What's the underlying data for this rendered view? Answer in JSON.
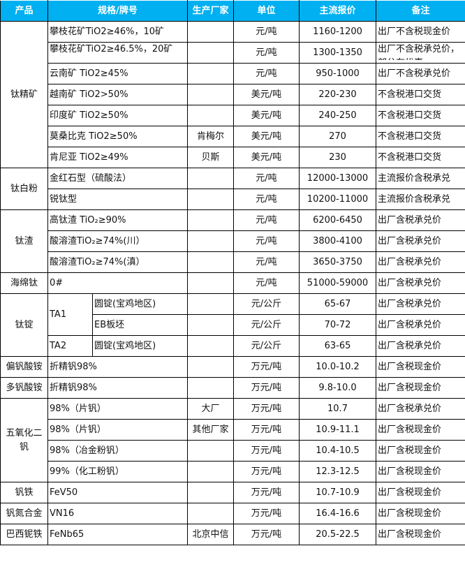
{
  "header": {
    "product": "产品",
    "spec": "规格/牌号",
    "maker": "生产厂家",
    "unit": "单位",
    "price": "主流报价",
    "note": "备注"
  },
  "groups": {
    "g1": "钛精矿",
    "g2": "钛白粉",
    "g3": "钛渣",
    "g4": "海绵钛",
    "g5": "钛锭",
    "g6": "偏钒酸铵",
    "g7": "多钒酸铵",
    "g8": "五氧化二钒",
    "g9": "钒铁",
    "g10": "钒氮合金",
    "g11": "巴西铌铁"
  },
  "rows": [
    {
      "spec": "攀枝花矿TiO2≥46%，10矿",
      "maker": "",
      "unit": "元/吨",
      "price": "1160-1200",
      "note": "出厂不含税现金价"
    },
    {
      "spec": "攀枝花矿TiO2≥46.5%，20矿",
      "maker": "",
      "unit": "元/吨",
      "price": "1300-1350",
      "note": "出厂不含税承兑价，部分有优惠"
    },
    {
      "spec": "云南矿 TiO2≥45%",
      "maker": "",
      "unit": "元/吨",
      "price": "950-1000",
      "note": "出厂不含税承兑价"
    },
    {
      "spec": "越南矿 TiO2>50%",
      "maker": "",
      "unit": "美元/吨",
      "price": "220-230",
      "note": "不含税港口交货"
    },
    {
      "spec": "印度矿 TiO2≥50%",
      "maker": "",
      "unit": "美元/吨",
      "price": "240-250",
      "note": "不含税港口交货"
    },
    {
      "spec": "莫桑比克 TiO2≥50%",
      "maker": "肯梅尔",
      "unit": "美元/吨",
      "price": "270",
      "note": "不含税港口交货"
    },
    {
      "spec": "肯尼亚 TiO2≥49%",
      "maker": "贝斯",
      "unit": "美元/吨",
      "price": "230",
      "note": "不含税港口交货"
    },
    {
      "spec": "金红石型（硫酸法）",
      "maker": "",
      "unit": "元/吨",
      "price": "12000-13000",
      "note": "主流报价含税承兑"
    },
    {
      "spec": "锐钛型",
      "maker": "",
      "unit": "元/吨",
      "price": "10200-11000",
      "note": "主流报价含税承兑"
    },
    {
      "spec": "高钛渣 TiO₂≥90%",
      "maker": "",
      "unit": "元/吨",
      "price": "6200-6450",
      "note": "出厂含税承兑价"
    },
    {
      "spec": "酸溶渣TiO₂≥74%(川）",
      "maker": "",
      "unit": "元/吨",
      "price": "3800-4100",
      "note": "出厂含税承兑价"
    },
    {
      "spec": "酸溶渣TiO₂≥74%(滇）",
      "maker": "",
      "unit": "元/吨",
      "price": "3650-3750",
      "note": "出厂含税承兑价"
    },
    {
      "spec": "0#",
      "maker": "",
      "unit": "元/吨",
      "price": "51000-59000",
      "note": "出厂含税承兑价"
    },
    {
      "grade": "TA1",
      "spec": "圆锭(宝鸡地区)",
      "maker": "",
      "unit": "元/公斤",
      "price": "65-67",
      "note": "出厂含税承兑价"
    },
    {
      "spec": "EB板坯",
      "maker": "",
      "unit": "元/公斤",
      "price": "70-72",
      "note": "出厂含税承兑价"
    },
    {
      "grade": "TA2",
      "spec": "圆锭(宝鸡地区)",
      "maker": "",
      "unit": "元/公斤",
      "price": "63-65",
      "note": "出厂含税承兑价"
    },
    {
      "spec": "折精钒98%",
      "maker": "",
      "unit": "万元/吨",
      "price": "10.0-10.2",
      "note": "出厂含税现金价"
    },
    {
      "spec": "折精钒98%",
      "maker": "",
      "unit": "万元/吨",
      "price": "9.8-10.0",
      "note": "出厂含税现金价"
    },
    {
      "spec": "98%（片钒）",
      "maker": "大厂",
      "unit": "万元/吨",
      "price": "10.7",
      "note": "出厂含税承兑价"
    },
    {
      "spec": "98%（片钒）",
      "maker": "其他厂家",
      "unit": "万元/吨",
      "price": "10.9-11.1",
      "note": "出厂含税现金价"
    },
    {
      "spec": "98%（冶金粉钒）",
      "maker": "",
      "unit": "万元/吨",
      "price": "10.4-10.5",
      "note": "出厂含税现金价"
    },
    {
      "spec": "99%（化工粉钒）",
      "maker": "",
      "unit": "万元/吨",
      "price": "12.3-12.5",
      "note": "出厂含税现金价"
    },
    {
      "spec": "FeV50",
      "maker": "",
      "unit": "万元/吨",
      "price": "10.7-10.9",
      "note": "出厂含税现金价"
    },
    {
      "spec": "VN16",
      "maker": "",
      "unit": "万元/吨",
      "price": "16.4-16.6",
      "note": "出厂含税现金价"
    },
    {
      "spec": "FeNb65",
      "maker": "北京中信",
      "unit": "万元/吨",
      "price": "20.5-22.5",
      "note": "出厂含税现金价"
    }
  ],
  "colors": {
    "header_bg": "#00B0F0",
    "header_text": "#FFFFFF"
  }
}
